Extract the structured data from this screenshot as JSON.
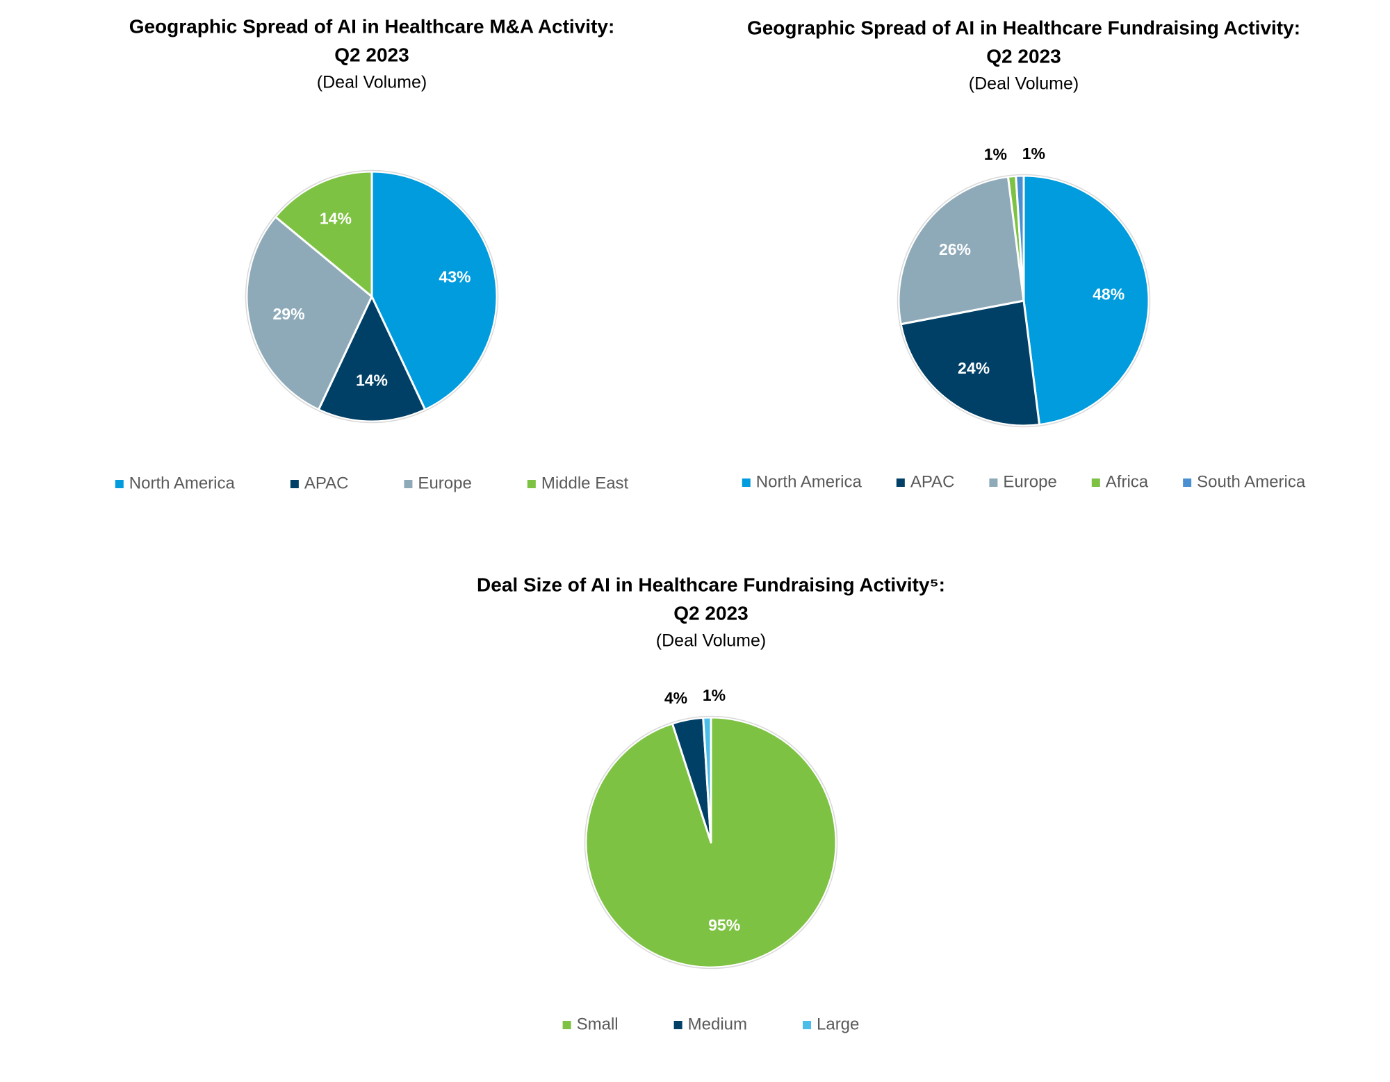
{
  "chart_data": [
    {
      "type": "pie",
      "title": [
        "Geographic Spread of AI in Healthcare M&A Activity:",
        "Q2 2023"
      ],
      "subtitle": "(Deal Volume)",
      "categories": [
        "North America",
        "APAC",
        "Europe",
        "Middle East"
      ],
      "values": [
        43,
        14,
        29,
        14
      ],
      "value_labels": [
        "43%",
        "14%",
        "29%",
        "14%"
      ],
      "colors": [
        "#009cde",
        "#003f66",
        "#8eaab9",
        "#7dc242"
      ]
    },
    {
      "type": "pie",
      "title": [
        "Geographic Spread of AI in Healthcare Fundraising Activity:",
        "Q2 2023"
      ],
      "subtitle": "(Deal Volume)",
      "categories": [
        "North America",
        "APAC",
        "Europe",
        "Africa",
        "South America"
      ],
      "values": [
        48,
        24,
        26,
        1,
        1
      ],
      "value_labels": [
        "48%",
        "24%",
        "26%",
        "1%",
        "1%"
      ],
      "colors": [
        "#009cde",
        "#003f66",
        "#8eaab9",
        "#7dc242",
        "#4a90d0"
      ]
    },
    {
      "type": "pie",
      "title": [
        "Deal Size of AI in Healthcare Fundraising Activity⁵:",
        "Q2 2023"
      ],
      "subtitle": "(Deal Volume)",
      "categories": [
        "Small",
        "Medium",
        "Large"
      ],
      "values": [
        95,
        4,
        1
      ],
      "value_labels": [
        "95%",
        "4%",
        "1%"
      ],
      "colors": [
        "#7dc242",
        "#003f66",
        "#4bbde8"
      ]
    }
  ]
}
